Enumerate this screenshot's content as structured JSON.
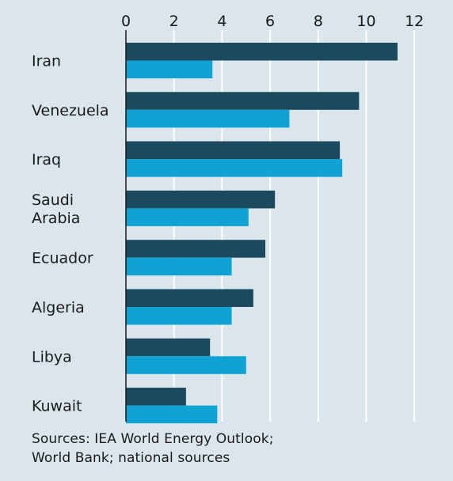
{
  "chart_data": {
    "type": "bar",
    "orientation": "horizontal",
    "categories": [
      "Iran",
      "Venezuela",
      "Iraq",
      "Saudi Arabia",
      "Ecuador",
      "Algeria",
      "Libya",
      "Kuwait"
    ],
    "category_lines": [
      [
        "Iran"
      ],
      [
        "Venezuela"
      ],
      [
        "Iraq"
      ],
      [
        "Saudi",
        "Arabia"
      ],
      [
        "Ecuador"
      ],
      [
        "Algeria"
      ],
      [
        "Libya"
      ],
      [
        "Kuwait"
      ]
    ],
    "series": [
      {
        "values": [
          11.3,
          9.7,
          8.9,
          6.2,
          5.8,
          5.3,
          3.5,
          2.5
        ],
        "color": "#1b4a5e"
      },
      {
        "values": [
          3.6,
          6.8,
          9.0,
          5.1,
          4.4,
          4.4,
          5.0,
          3.8
        ],
        "color": "#0fa2d3"
      }
    ],
    "xlim": [
      0,
      12
    ],
    "xticks": [
      0,
      2,
      4,
      6,
      8,
      10,
      12
    ],
    "axis_position": "top",
    "grid": true,
    "legend": "none"
  },
  "footer": {
    "source_line1": "Sources: IEA World Energy Outlook;",
    "source_line2": "World Bank; national sources"
  },
  "colors": {
    "background": "#dae5ec",
    "gridline": "#ffffff",
    "axis": "#1a1a1a",
    "text": "#1a1a1a"
  }
}
